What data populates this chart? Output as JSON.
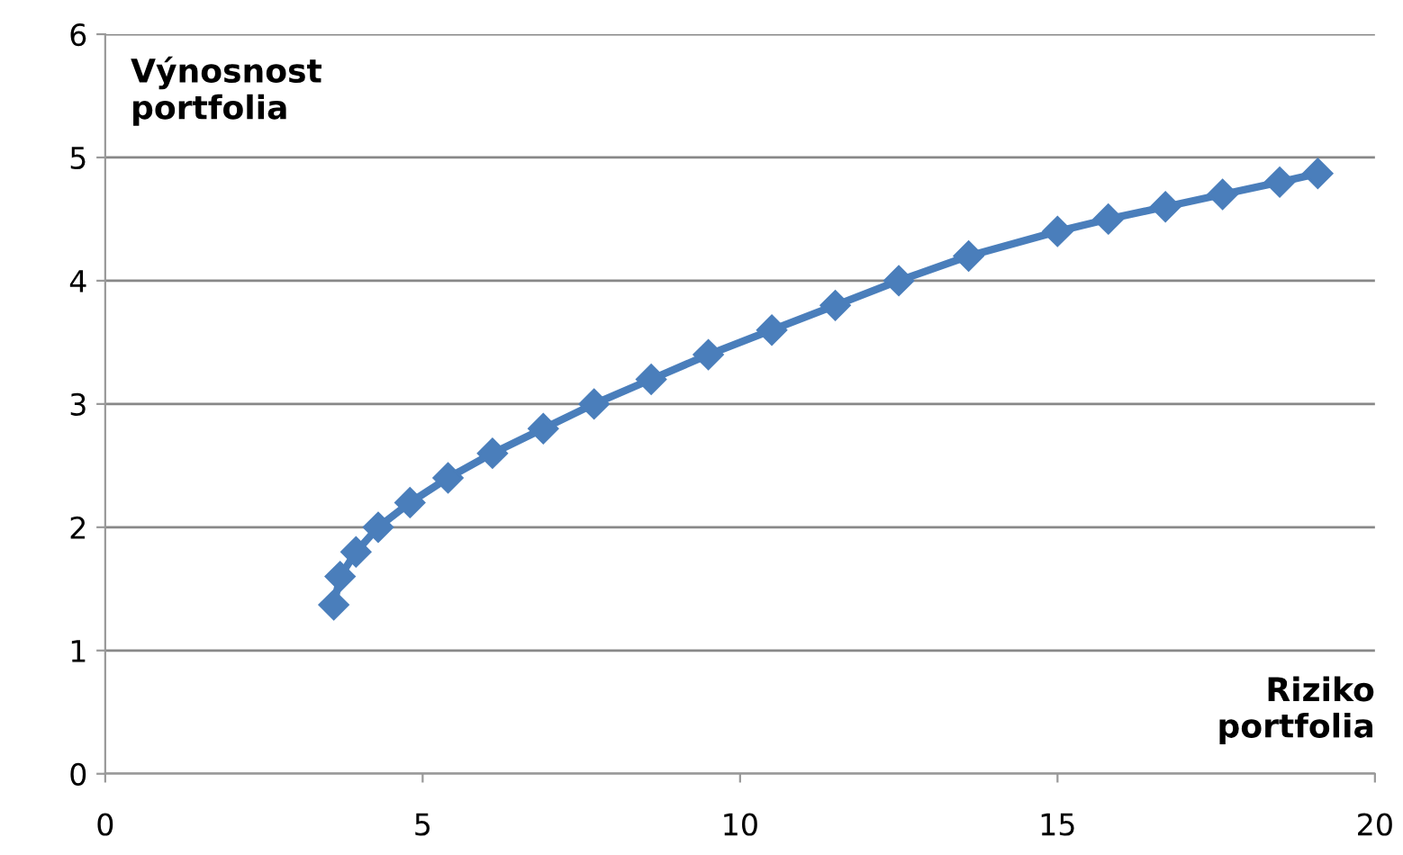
{
  "chart_data": {
    "type": "line",
    "xlabel": "Riziko\nportfolia",
    "ylabel": "Výnosnost\nportfolia",
    "series": [
      {
        "color": "#4a7ebb",
        "x": [
          3.6,
          3.7,
          3.95,
          4.3,
          4.8,
          5.4,
          6.1,
          6.9,
          7.7,
          8.6,
          9.5,
          10.5,
          11.5,
          12.5,
          13.6,
          15.0,
          15.8,
          16.7,
          17.6,
          18.5,
          19.1
        ],
        "values": [
          1.37,
          1.6,
          1.8,
          2.0,
          2.2,
          2.4,
          2.6,
          2.8,
          3.0,
          3.2,
          3.4,
          3.6,
          3.8,
          4.0,
          4.2,
          4.4,
          4.5,
          4.6,
          4.7,
          4.8,
          4.87
        ]
      }
    ],
    "xlim": [
      0,
      20
    ],
    "ylim": [
      0,
      6
    ],
    "xticks": [
      0,
      5,
      10,
      15,
      20
    ],
    "yticks": [
      0,
      1,
      2,
      3,
      4,
      5,
      6
    ],
    "grid": "y",
    "marker": "diamond",
    "line_style": "solid"
  }
}
